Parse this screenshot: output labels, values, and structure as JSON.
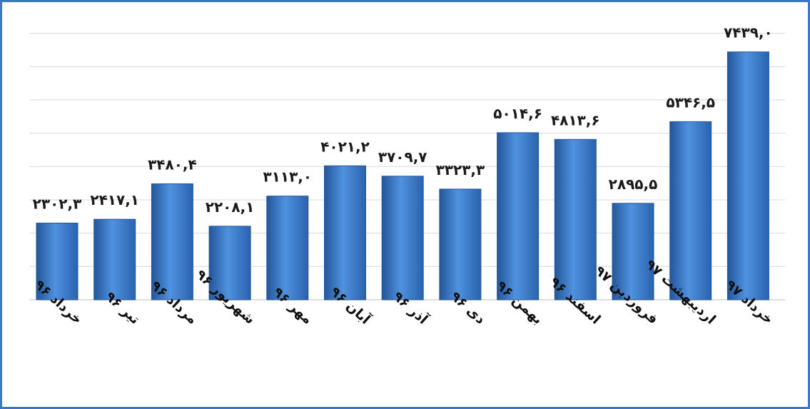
{
  "chart_data": {
    "type": "bar",
    "categories": [
      "خرداد ۹۶",
      "تیر ۹۶",
      "مرداد ۹۶",
      "شهریور ۹۶",
      "مهر ۹۶",
      "آبان ۹۶",
      "آذر ۹۶",
      "دی ۹۶",
      "بهمن ۹۶",
      "اسفند ۹۶",
      "فروردین ۹۷",
      "اردیبهشت ۹۷",
      "خرداد ۹۷"
    ],
    "values": [
      2302.3,
      2417.1,
      3480.4,
      2208.1,
      3113.0,
      4021.2,
      3709.7,
      3323.3,
      5014.6,
      4813.6,
      2895.5,
      5346.5,
      7439.0
    ],
    "data_labels": [
      "۲۳۰۲,۳",
      "۲۴۱۷,۱",
      "۳۴۸۰,۴",
      "۲۲۰۸,۱",
      "۳۱۱۳,۰",
      "۴۰۲۱,۲",
      "۳۷۰۹,۷",
      "۳۳۲۳,۳",
      "۵۰۱۴,۶",
      "۴۸۱۳,۶",
      "۲۸۹۵,۵",
      "۵۳۴۶,۵",
      "۷۴۳۹,۰"
    ],
    "title": "",
    "xlabel": "",
    "ylabel": "",
    "ylim": [
      0,
      8000
    ],
    "grid": true,
    "colors": {
      "bar": "#3c7dd0",
      "bar_dark": "#24569a",
      "bar_light": "#6aa6ea",
      "grid": "#d9d9d9",
      "frame": "#3a78c5"
    }
  }
}
